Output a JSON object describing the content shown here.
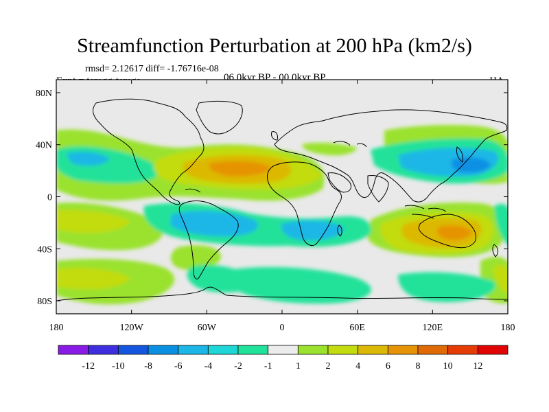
{
  "header": {
    "title": "Streamfunction Perturbation at 200 hPa (km2/s)",
    "stats": "rmsd= 2.12617 diff= -1.76716e-08",
    "experiment": "Expt = temgg-temga",
    "period": "06.0kyr BP - 00.0kyr BP",
    "season": "JJA"
  },
  "map": {
    "projection": "cylindrical equidistant",
    "lon_range": [
      -180,
      180
    ],
    "lat_range": [
      -90,
      90
    ],
    "lat_ticks": [
      {
        "value": 80,
        "label": "80N"
      },
      {
        "value": 40,
        "label": "40N"
      },
      {
        "value": 0,
        "label": "0"
      },
      {
        "value": -40,
        "label": "40S"
      },
      {
        "value": -80,
        "label": "80S"
      }
    ],
    "lon_ticks": [
      {
        "value": -180,
        "label": "180"
      },
      {
        "value": -120,
        "label": "120W"
      },
      {
        "value": -60,
        "label": "60W"
      },
      {
        "value": 0,
        "label": "0"
      },
      {
        "value": 60,
        "label": "60E"
      },
      {
        "value": 120,
        "label": "120E"
      },
      {
        "value": 180,
        "label": "180"
      }
    ],
    "fields": [
      {
        "name": "n-atlantic-high",
        "lon": -30,
        "lat": 25,
        "rlon": 35,
        "rlat": 12,
        "level": 6
      },
      {
        "name": "nw-pacific-low",
        "lon": 155,
        "lat": 28,
        "rlon": 25,
        "rlat": 9,
        "level": -6
      },
      {
        "name": "australia-high",
        "lon": 140,
        "lat": -27,
        "rlon": 30,
        "rlat": 11,
        "level": 6
      },
      {
        "name": "s-america-low",
        "lon": -55,
        "lat": -17,
        "rlon": 40,
        "rlat": 10,
        "level": -4
      },
      {
        "name": "s-africa-low",
        "lon": 30,
        "lat": -22,
        "rlon": 20,
        "rlat": 8,
        "level": -4
      },
      {
        "name": "s-pacific-high",
        "lon": -155,
        "lat": -60,
        "rlon": 40,
        "rlat": 12,
        "level": 4
      },
      {
        "name": "se-pacific-low",
        "lon": -78,
        "lat": -65,
        "rlon": 22,
        "rlat": 10,
        "level": -1
      },
      {
        "name": "e-pacific-high",
        "lon": -150,
        "lat": -15,
        "rlon": 40,
        "rlat": 10,
        "level": 4
      }
    ],
    "continents": [
      "north-america",
      "south-america",
      "eurasia",
      "africa",
      "australia",
      "greenland",
      "antarctica",
      "arabia",
      "india",
      "japan",
      "uk",
      "madagascar",
      "new-zealand"
    ]
  },
  "colorbar": {
    "labels": [
      "-12",
      "-10",
      "-8",
      "-6",
      "-4",
      "-2",
      "-1",
      "1",
      "2",
      "4",
      "6",
      "8",
      "10",
      "12"
    ],
    "colors": [
      "#8a1ae6",
      "#3f2ee0",
      "#1556e0",
      "#0a90e3",
      "#1cb7e6",
      "#1fd6d6",
      "#21e29a",
      "#ececec",
      "#9ae22d",
      "#c2dc10",
      "#dcb906",
      "#e69306",
      "#e06a05",
      "#e53c06",
      "#e00404"
    ]
  },
  "colors": {
    "background": "#ffffff",
    "land_outline": "#000000",
    "neutral": "#e9e9e9"
  }
}
